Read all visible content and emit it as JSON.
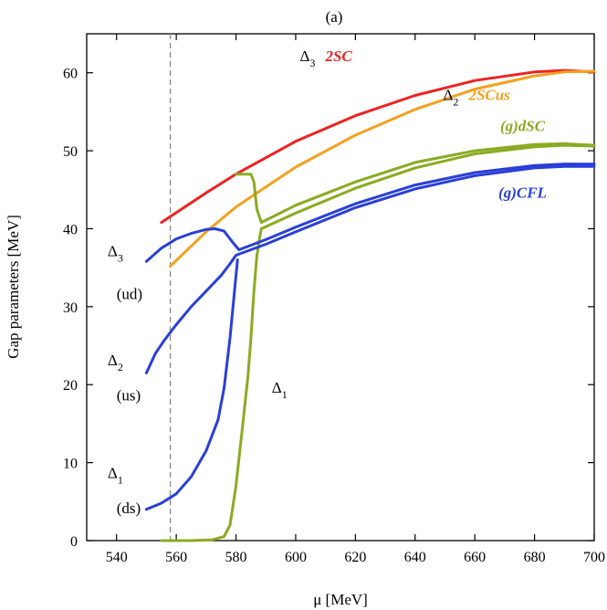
{
  "chart_data": {
    "type": "line",
    "title": "(a)",
    "xlabel": "μ [MeV]",
    "ylabel": "Gap parameters [MeV]",
    "xlim": [
      530,
      700
    ],
    "ylim": [
      0,
      65
    ],
    "xticks": [
      540,
      560,
      580,
      600,
      620,
      640,
      660,
      680,
      700
    ],
    "yticks": [
      0,
      10,
      20,
      30,
      40,
      50,
      60
    ],
    "vline": {
      "x": 558,
      "style": "dashed",
      "color": "#888888"
    },
    "colors": {
      "2SC": "#ee2222",
      "2SCus": "#f5a020",
      "gdSC": "#8aab22",
      "gCFL": "#2a3fd8"
    },
    "series": [
      {
        "name": "Delta3 2SC",
        "color": "2SC",
        "points": [
          [
            555,
            40.8
          ],
          [
            570,
            44.6
          ],
          [
            580,
            47.0
          ],
          [
            600,
            51.2
          ],
          [
            620,
            54.5
          ],
          [
            640,
            57.1
          ],
          [
            660,
            59.0
          ],
          [
            680,
            60.1
          ],
          [
            690,
            60.3
          ],
          [
            700,
            60.1
          ]
        ]
      },
      {
        "name": "Delta2 2SCus",
        "color": "2SCus",
        "points": [
          [
            558,
            35.2
          ],
          [
            570,
            39.6
          ],
          [
            580,
            42.8
          ],
          [
            600,
            47.9
          ],
          [
            620,
            52.0
          ],
          [
            640,
            55.3
          ],
          [
            660,
            57.9
          ],
          [
            680,
            59.6
          ],
          [
            690,
            60.1
          ],
          [
            700,
            60.2
          ]
        ]
      },
      {
        "name": "Delta3 (g)dSC",
        "color": "gdSC",
        "points": [
          [
            580,
            47.0
          ],
          [
            585,
            47.0
          ],
          [
            586,
            46.0
          ],
          [
            587,
            42.5
          ],
          [
            588.5,
            40.8
          ],
          [
            600,
            43.0
          ],
          [
            620,
            46.0
          ],
          [
            640,
            48.5
          ],
          [
            660,
            50.0
          ],
          [
            680,
            50.8
          ],
          [
            690,
            50.9
          ],
          [
            700,
            50.7
          ]
        ]
      },
      {
        "name": "Delta2 (g)dSC",
        "color": "gdSC",
        "points": [
          [
            588.5,
            40.0
          ],
          [
            600,
            42.0
          ],
          [
            620,
            45.2
          ],
          [
            640,
            47.8
          ],
          [
            660,
            49.6
          ],
          [
            680,
            50.5
          ],
          [
            690,
            50.7
          ],
          [
            700,
            50.6
          ]
        ]
      },
      {
        "name": "Delta1 (g)dSC",
        "color": "gdSC",
        "points": [
          [
            555,
            0
          ],
          [
            565,
            0
          ],
          [
            572,
            0.1
          ],
          [
            576,
            0.5
          ],
          [
            578,
            2
          ],
          [
            580,
            7
          ],
          [
            582,
            14
          ],
          [
            584,
            21
          ],
          [
            585,
            26
          ],
          [
            586,
            32
          ],
          [
            587,
            36.5
          ],
          [
            588,
            39
          ],
          [
            588.5,
            40
          ]
        ]
      },
      {
        "name": "Delta3 (g)CFL",
        "color": "gCFL",
        "points": [
          [
            550,
            35.8
          ],
          [
            555,
            37.5
          ],
          [
            560,
            38.7
          ],
          [
            565,
            39.4
          ],
          [
            570,
            39.9
          ],
          [
            573,
            40.0
          ],
          [
            576,
            39.7
          ],
          [
            579,
            38.2
          ],
          [
            581,
            37.3
          ],
          [
            590,
            38.6
          ],
          [
            600,
            40.2
          ],
          [
            620,
            43.2
          ],
          [
            640,
            45.6
          ],
          [
            660,
            47.2
          ],
          [
            680,
            48.1
          ],
          [
            690,
            48.3
          ],
          [
            700,
            48.3
          ]
        ]
      },
      {
        "name": "Delta2 (g)CFL",
        "color": "gCFL",
        "points": [
          [
            550,
            21.5
          ],
          [
            553,
            24.0
          ],
          [
            556,
            25.7
          ],
          [
            560,
            27.7
          ],
          [
            565,
            30.0
          ],
          [
            570,
            32.0
          ],
          [
            575,
            34.0
          ],
          [
            578,
            35.5
          ],
          [
            580,
            36.6
          ],
          [
            590,
            38.0
          ],
          [
            600,
            39.6
          ],
          [
            620,
            42.7
          ],
          [
            640,
            45.1
          ],
          [
            660,
            46.8
          ],
          [
            680,
            47.8
          ],
          [
            690,
            48.0
          ],
          [
            700,
            48.0
          ]
        ]
      },
      {
        "name": "Delta1 (g)CFL",
        "color": "gCFL",
        "points": [
          [
            550,
            4.0
          ],
          [
            555,
            4.8
          ],
          [
            560,
            6.0
          ],
          [
            565,
            8.2
          ],
          [
            570,
            11.5
          ],
          [
            574,
            15.5
          ],
          [
            576,
            19.5
          ],
          [
            578,
            26.0
          ],
          [
            579.5,
            32.0
          ],
          [
            580.5,
            36.0
          ]
        ]
      }
    ],
    "annotations": [
      {
        "label": "Δ",
        "sub": "3",
        "x": 537,
        "y": 36.5
      },
      {
        "label": "(ud)",
        "x": 540,
        "y": 31
      },
      {
        "label": "Δ",
        "sub": "2",
        "x": 537,
        "y": 22.5
      },
      {
        "label": "(us)",
        "x": 540,
        "y": 18
      },
      {
        "label": "Δ",
        "sub": "1",
        "x": 537,
        "y": 8
      },
      {
        "label": "(ds)",
        "x": 540,
        "y": 3.5
      },
      {
        "label": "Δ",
        "sub": "1",
        "x": 592,
        "y": 19
      }
    ],
    "tags": [
      {
        "prefix": "Δ",
        "sub": "3",
        "label": "2SC",
        "color": "2SC",
        "x": 613,
        "y": 61.5
      },
      {
        "prefix": "Δ",
        "sub": "2",
        "label": "2SCus",
        "color": "2SCus",
        "x": 661,
        "y": 56.5
      },
      {
        "label": "(g)dSC",
        "color": "gdSC",
        "x": 676,
        "y": 52.5
      },
      {
        "label": "(g)CFL",
        "color": "gCFL",
        "x": 676,
        "y": 44.0
      }
    ]
  }
}
